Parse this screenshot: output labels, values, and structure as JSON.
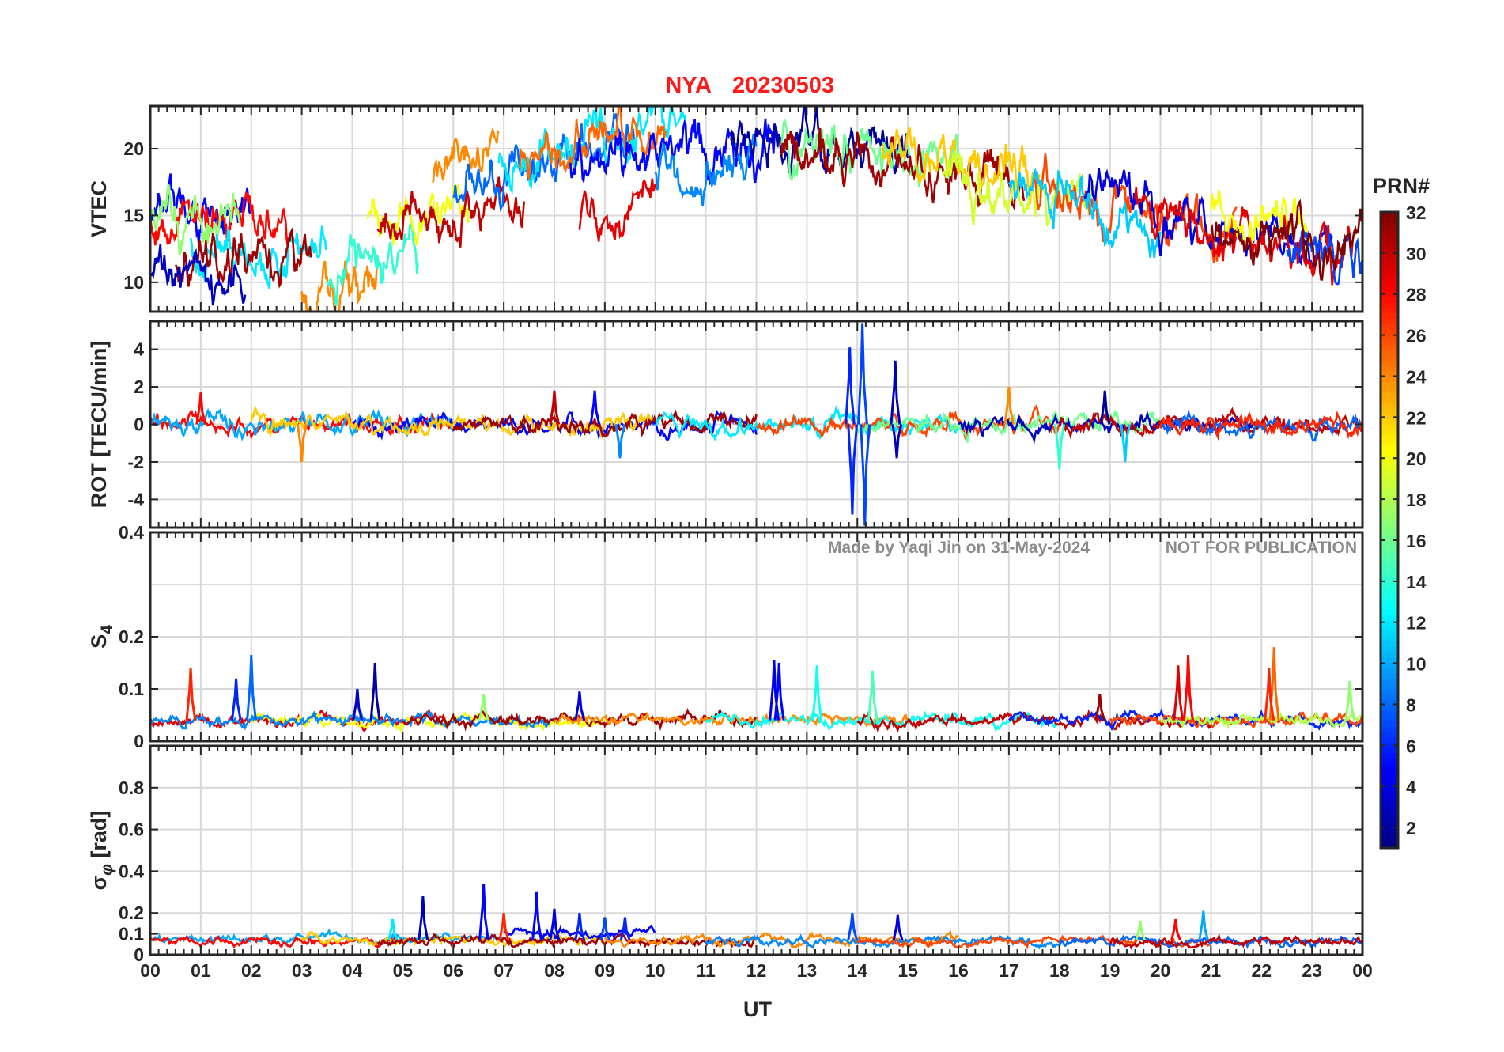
{
  "chart_data": {
    "type": "line",
    "title": {
      "station": "NYA",
      "date": "20230503"
    },
    "colors": {
      "title": "#ff1a1a",
      "grid": "#d9d9d9",
      "axis": "#262626",
      "watermark": "#8a8a8a"
    },
    "watermark": {
      "made_by": "Made by Yaqi Jin on 31-May-2024",
      "notice": "NOT FOR PUBLICATION"
    },
    "x": {
      "label": "UT",
      "range": [
        0,
        24
      ],
      "tick_labels": [
        "00",
        "01",
        "02",
        "03",
        "04",
        "05",
        "06",
        "07",
        "08",
        "09",
        "10",
        "11",
        "12",
        "13",
        "14",
        "15",
        "16",
        "17",
        "18",
        "19",
        "20",
        "21",
        "22",
        "23",
        "00"
      ]
    },
    "panels": [
      {
        "id": "vtec",
        "ylabel": "VTEC",
        "sub": "",
        "ylabel_unit": "",
        "ylim": [
          7.8,
          23.2
        ],
        "yticks": [
          {
            "v": 10,
            "l": "10"
          },
          {
            "v": 15,
            "l": "15"
          },
          {
            "v": 20,
            "l": "20"
          }
        ],
        "ygrid": [
          10,
          15,
          20
        ],
        "baseline": 15,
        "trend_points": [
          [
            0,
            14
          ],
          [
            3,
            13.5
          ],
          [
            5,
            15
          ],
          [
            7,
            16
          ],
          [
            9,
            19
          ],
          [
            11,
            20
          ],
          [
            13,
            20.5
          ],
          [
            15,
            19
          ],
          [
            17,
            18
          ],
          [
            19,
            16
          ],
          [
            21,
            14
          ],
          [
            23,
            13
          ],
          [
            24,
            12.5
          ]
        ],
        "noise": 0.9,
        "arcs": [
          {
            "prn": 5,
            "t0": 0.0,
            "t1": 2.0,
            "offset": 1.5
          },
          {
            "prn": 28,
            "t0": 0.0,
            "t1": 2.8,
            "offset": 1.0
          },
          {
            "prn": 17,
            "t0": 0.0,
            "t1": 1.8,
            "offset": 0.5
          },
          {
            "prn": 12,
            "t0": 0.8,
            "t1": 3.5,
            "offset": -1.0
          },
          {
            "prn": 31,
            "t0": 0.5,
            "t1": 3.2,
            "offset": -2.0
          },
          {
            "prn": 3,
            "t0": 0.0,
            "t1": 1.9,
            "offset": -3.2
          },
          {
            "prn": 24,
            "t0": 3.0,
            "t1": 4.5,
            "offset": -4.5
          },
          {
            "prn": 14,
            "t0": 3.5,
            "t1": 5.3,
            "offset": -2.5
          },
          {
            "prn": 20,
            "t0": 4.3,
            "t1": 6.3,
            "offset": 0.3
          },
          {
            "prn": 24,
            "t0": 5.6,
            "t1": 6.9,
            "offset": 3.5
          },
          {
            "prn": 30,
            "t0": 4.5,
            "t1": 7.4,
            "offset": -0.5
          },
          {
            "prn": 8,
            "t0": 6.0,
            "t1": 9.6,
            "offset": 1.5
          },
          {
            "prn": 12,
            "t0": 6.9,
            "t1": 10.6,
            "offset": 2.5
          },
          {
            "prn": 25,
            "t0": 7.3,
            "t1": 10.2,
            "offset": 2.0
          },
          {
            "prn": 29,
            "t0": 8.5,
            "t1": 10.0,
            "offset": -3.0
          },
          {
            "prn": 5,
            "t0": 8.3,
            "t1": 12.5,
            "offset": 0.3
          },
          {
            "prn": 9,
            "t0": 10.0,
            "t1": 12.0,
            "offset": -1.5
          },
          {
            "prn": 2,
            "t0": 11.5,
            "t1": 15.0,
            "offset": 0.5
          },
          {
            "prn": 16,
            "t0": 12.5,
            "t1": 16.0,
            "offset": 0.0
          },
          {
            "prn": 31,
            "t0": 12.5,
            "t1": 17.3,
            "offset": -1.0
          },
          {
            "prn": 22,
            "t0": 14.5,
            "t1": 17.6,
            "offset": 0.5
          },
          {
            "prn": 19,
            "t0": 15.7,
            "t1": 18.7,
            "offset": -0.5
          },
          {
            "prn": 26,
            "t0": 17.5,
            "t1": 21.5,
            "offset": 0.0
          },
          {
            "prn": 11,
            "t0": 17.0,
            "t1": 20.0,
            "offset": -1.0
          },
          {
            "prn": 4,
            "t0": 18.5,
            "t1": 23.4,
            "offset": 0.3
          },
          {
            "prn": 29,
            "t0": 19.5,
            "t1": 23.8,
            "offset": -0.5
          },
          {
            "prn": 20,
            "t0": 21.0,
            "t1": 23.0,
            "offset": 1.0
          },
          {
            "prn": 7,
            "t0": 22.5,
            "t1": 24.0,
            "offset": -0.5
          },
          {
            "prn": 32,
            "t0": 21.0,
            "t1": 24.0,
            "offset": 0.5
          }
        ]
      },
      {
        "id": "rot",
        "ylabel": "ROT [TECU/min]",
        "sub": "",
        "ylabel_unit": "",
        "ylim": [
          -5.5,
          5.5
        ],
        "yticks": [
          {
            "v": -4,
            "l": "-4"
          },
          {
            "v": -2,
            "l": "-2"
          },
          {
            "v": 0,
            "l": "0"
          },
          {
            "v": 2,
            "l": "2"
          },
          {
            "v": 4,
            "l": "4"
          }
        ],
        "ygrid": [
          -4,
          -2,
          0,
          2,
          4
        ],
        "baseline": 0,
        "trend_points": [
          [
            0,
            0
          ],
          [
            24,
            0
          ]
        ],
        "noise": 0.35,
        "arcs": [
          {
            "prn": 28,
            "t0": 0.0,
            "t1": 6.0,
            "offset": 0
          },
          {
            "prn": 10,
            "t0": 0.0,
            "t1": 6.0,
            "offset": 0
          },
          {
            "prn": 5,
            "t0": 4.0,
            "t1": 12.0,
            "offset": 0
          },
          {
            "prn": 22,
            "t0": 2.0,
            "t1": 10.0,
            "offset": 0
          },
          {
            "prn": 31,
            "t0": 6.0,
            "t1": 12.0,
            "offset": 0
          },
          {
            "prn": 12,
            "t0": 10.0,
            "t1": 16.0,
            "offset": 0
          },
          {
            "prn": 26,
            "t0": 12.0,
            "t1": 18.0,
            "offset": 0
          },
          {
            "prn": 16,
            "t0": 14.0,
            "t1": 20.0,
            "offset": 0
          },
          {
            "prn": 3,
            "t0": 16.0,
            "t1": 22.0,
            "offset": 0
          },
          {
            "prn": 30,
            "t0": 18.0,
            "t1": 24.0,
            "offset": 0
          },
          {
            "prn": 8,
            "t0": 20.0,
            "t1": 24.0,
            "offset": 0
          },
          {
            "prn": 27,
            "t0": 20.0,
            "t1": 24.0,
            "offset": 0
          }
        ],
        "spikes": [
          {
            "t": 13.85,
            "v": 4.1,
            "prn": 6
          },
          {
            "t": 13.9,
            "v": -4.8,
            "prn": 6
          },
          {
            "t": 14.1,
            "v": 5.4,
            "prn": 7
          },
          {
            "t": 14.15,
            "v": -5.4,
            "prn": 7
          },
          {
            "t": 14.75,
            "v": 3.4,
            "prn": 3
          },
          {
            "t": 14.78,
            "v": -1.8,
            "prn": 3
          },
          {
            "t": 8.8,
            "v": 1.8,
            "prn": 5
          },
          {
            "t": 9.3,
            "v": -1.8,
            "prn": 9
          },
          {
            "t": 18.9,
            "v": 1.8,
            "prn": 2
          },
          {
            "t": 19.3,
            "v": -2.0,
            "prn": 11
          },
          {
            "t": 1.0,
            "v": 1.7,
            "prn": 28
          },
          {
            "t": 17.0,
            "v": 2.0,
            "prn": 24
          },
          {
            "t": 18.0,
            "v": -2.4,
            "prn": 14
          },
          {
            "t": 8.0,
            "v": 1.8,
            "prn": 30
          },
          {
            "t": 3.0,
            "v": -2.0,
            "prn": 24
          }
        ]
      },
      {
        "id": "s4",
        "ylabel": "S",
        "sub": "4",
        "ylabel_unit": "",
        "ylim": [
          0,
          0.4
        ],
        "yticks": [
          {
            "v": 0,
            "l": "0"
          },
          {
            "v": 0.1,
            "l": "0.1"
          },
          {
            "v": 0.2,
            "l": "0.2"
          },
          {
            "v": 0.4,
            "l": "0.4"
          }
        ],
        "ygrid": [
          0.1,
          0.2,
          0.3
        ],
        "baseline": 0.04,
        "trend_points": [
          [
            0,
            0.04
          ],
          [
            24,
            0.04
          ]
        ],
        "noise": 0.008,
        "arcs": [
          {
            "prn": 29,
            "t0": 0.0,
            "t1": 6.0,
            "offset": 0
          },
          {
            "prn": 20,
            "t0": 2.0,
            "t1": 9.0,
            "offset": 0
          },
          {
            "prn": 9,
            "t0": 0.0,
            "t1": 8.0,
            "offset": 0
          },
          {
            "prn": 31,
            "t0": 5.0,
            "t1": 12.0,
            "offset": 0
          },
          {
            "prn": 24,
            "t0": 8.0,
            "t1": 15.0,
            "offset": 0
          },
          {
            "prn": 13,
            "t0": 11.0,
            "t1": 18.0,
            "offset": 0
          },
          {
            "prn": 30,
            "t0": 14.0,
            "t1": 21.0,
            "offset": 0
          },
          {
            "prn": 6,
            "t0": 17.0,
            "t1": 24.0,
            "offset": 0
          },
          {
            "prn": 26,
            "t0": 19.0,
            "t1": 24.0,
            "offset": 0
          },
          {
            "prn": 18,
            "t0": 20.0,
            "t1": 24.0,
            "offset": 0
          }
        ],
        "spikes": [
          {
            "t": 0.8,
            "v": 0.14,
            "prn": 27
          },
          {
            "t": 1.7,
            "v": 0.12,
            "prn": 6
          },
          {
            "t": 2.0,
            "v": 0.165,
            "prn": 8
          },
          {
            "t": 4.45,
            "v": 0.15,
            "prn": 2
          },
          {
            "t": 4.1,
            "v": 0.1,
            "prn": 3
          },
          {
            "t": 12.35,
            "v": 0.155,
            "prn": 4
          },
          {
            "t": 12.45,
            "v": 0.15,
            "prn": 5
          },
          {
            "t": 13.2,
            "v": 0.145,
            "prn": 13
          },
          {
            "t": 14.3,
            "v": 0.135,
            "prn": 15
          },
          {
            "t": 20.35,
            "v": 0.145,
            "prn": 29
          },
          {
            "t": 20.55,
            "v": 0.165,
            "prn": 28
          },
          {
            "t": 22.25,
            "v": 0.18,
            "prn": 25
          },
          {
            "t": 22.15,
            "v": 0.14,
            "prn": 27
          },
          {
            "t": 23.75,
            "v": 0.115,
            "prn": 17
          },
          {
            "t": 8.5,
            "v": 0.095,
            "prn": 4
          },
          {
            "t": 6.6,
            "v": 0.09,
            "prn": 17
          },
          {
            "t": 18.8,
            "v": 0.09,
            "prn": 31
          }
        ]
      },
      {
        "id": "sigphi",
        "ylabel": "σ",
        "sub": "φ",
        "ylabel_unit": " [rad]",
        "ylim": [
          0,
          1.0
        ],
        "yticks": [
          {
            "v": 0,
            "l": "0"
          },
          {
            "v": 0.1,
            "l": "0.1"
          },
          {
            "v": 0.2,
            "l": "0.2"
          },
          {
            "v": 0.4,
            "l": "0.4"
          },
          {
            "v": 0.6,
            "l": "0.6"
          },
          {
            "v": 0.8,
            "l": "0.8"
          }
        ],
        "ygrid": [
          0.1,
          0.2,
          0.4,
          0.6,
          0.8
        ],
        "baseline": 0.07,
        "trend_points": [
          [
            0,
            0.07
          ],
          [
            24,
            0.06
          ]
        ],
        "noise": 0.015,
        "arcs": [
          {
            "prn": 10,
            "t0": 0.0,
            "t1": 7.0,
            "offset": 0.01
          },
          {
            "prn": 28,
            "t0": 0.0,
            "t1": 5.0,
            "offset": 0
          },
          {
            "prn": 22,
            "t0": 3.0,
            "t1": 9.0,
            "offset": 0
          },
          {
            "prn": 31,
            "t0": 4.5,
            "t1": 12.0,
            "offset": 0
          },
          {
            "prn": 5,
            "t0": 7.0,
            "t1": 10.0,
            "offset": 0.04
          },
          {
            "prn": 24,
            "t0": 9.0,
            "t1": 16.0,
            "offset": 0
          },
          {
            "prn": 9,
            "t0": 11.0,
            "t1": 18.0,
            "offset": 0
          },
          {
            "prn": 26,
            "t0": 14.0,
            "t1": 21.0,
            "offset": 0
          },
          {
            "prn": 8,
            "t0": 18.0,
            "t1": 24.0,
            "offset": 0
          },
          {
            "prn": 30,
            "t0": 19.0,
            "t1": 24.0,
            "offset": 0
          }
        ],
        "spikes": [
          {
            "t": 5.4,
            "v": 0.28,
            "prn": 3
          },
          {
            "t": 6.6,
            "v": 0.34,
            "prn": 5
          },
          {
            "t": 7.65,
            "v": 0.3,
            "prn": 5
          },
          {
            "t": 7.0,
            "v": 0.2,
            "prn": 27
          },
          {
            "t": 8.0,
            "v": 0.22,
            "prn": 4
          },
          {
            "t": 8.5,
            "v": 0.2,
            "prn": 6
          },
          {
            "t": 9.0,
            "v": 0.18,
            "prn": 7
          },
          {
            "t": 9.4,
            "v": 0.18,
            "prn": 6
          },
          {
            "t": 13.9,
            "v": 0.2,
            "prn": 7
          },
          {
            "t": 14.8,
            "v": 0.19,
            "prn": 4
          },
          {
            "t": 20.85,
            "v": 0.21,
            "prn": 10
          },
          {
            "t": 4.8,
            "v": 0.17,
            "prn": 12
          },
          {
            "t": 19.6,
            "v": 0.16,
            "prn": 17
          },
          {
            "t": 20.3,
            "v": 0.17,
            "prn": 28
          }
        ]
      }
    ],
    "colorbar": {
      "label": "PRN#",
      "range": [
        1,
        32
      ],
      "tick_labels": [
        {
          "v": 2,
          "l": "2"
        },
        {
          "v": 4,
          "l": "4"
        },
        {
          "v": 6,
          "l": "6"
        },
        {
          "v": 8,
          "l": "8"
        },
        {
          "v": 10,
          "l": "10"
        },
        {
          "v": 12,
          "l": "12"
        },
        {
          "v": 14,
          "l": "14"
        },
        {
          "v": 16,
          "l": "16"
        },
        {
          "v": 18,
          "l": "18"
        },
        {
          "v": 20,
          "l": "20"
        },
        {
          "v": 22,
          "l": "22"
        },
        {
          "v": 24,
          "l": "24"
        },
        {
          "v": 26,
          "l": "26"
        },
        {
          "v": 28,
          "l": "28"
        },
        {
          "v": 30,
          "l": "30"
        },
        {
          "v": 32,
          "l": "32"
        }
      ]
    }
  }
}
